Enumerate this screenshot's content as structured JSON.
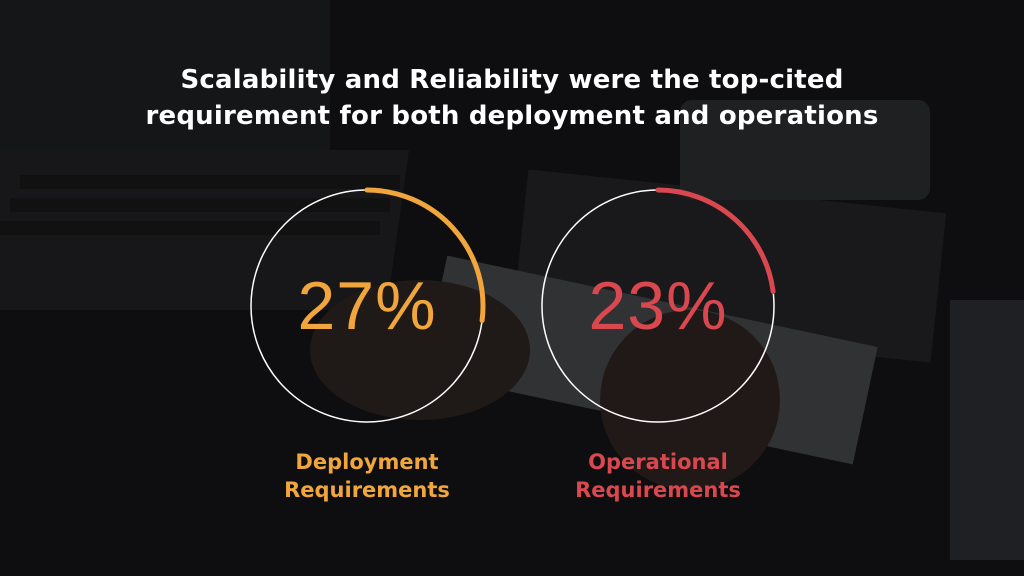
{
  "title_lines": [
    "Scalability and Reliability were the top-cited",
    "requirement for both deployment and operations"
  ],
  "colors": {
    "deployment": "#f0a63c",
    "operational": "#d9474f",
    "ring": "#ffffff"
  },
  "chart_data": {
    "type": "pie",
    "title": "Scalability and Reliability were the top-cited requirement for both deployment and operations",
    "series": [
      {
        "name": "Deployment Requirements",
        "value": 27,
        "unit": "%",
        "label": "27%",
        "label_lines": [
          "Deployment",
          "Requirements"
        ],
        "color": "#f0a63c"
      },
      {
        "name": "Operational Requirements",
        "value": 23,
        "unit": "%",
        "label": "23%",
        "label_lines": [
          "Operational",
          "Requirements"
        ],
        "color": "#d9474f"
      }
    ]
  }
}
